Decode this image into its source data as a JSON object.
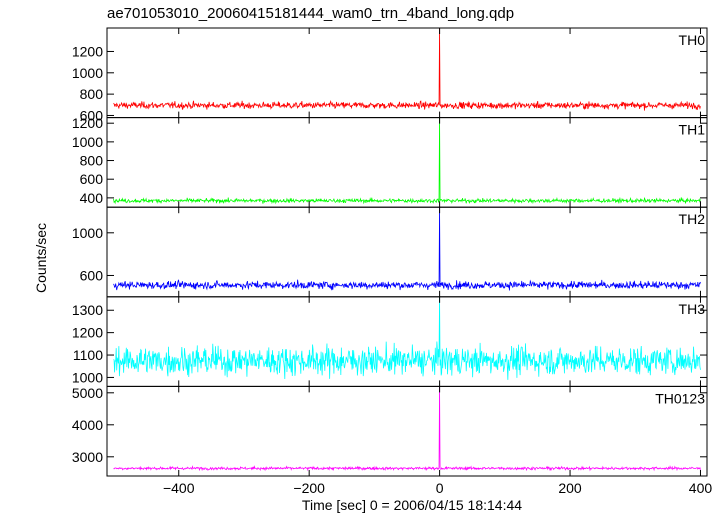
{
  "chart_data": {
    "type": "line",
    "title": "ae701053010_20060415181444_wam0_trn_4band_long.qdp",
    "xlabel": "Time [sec] 0 = 2006/04/15 18:14:44",
    "ylabel": "Counts/sec",
    "xlim": [
      -510,
      410
    ],
    "x_ticks": [
      -400,
      -200,
      0,
      200,
      400
    ],
    "x_tick_labels": [
      "−400",
      "−200",
      "0",
      "200",
      "400"
    ],
    "x_range_data": [
      -500,
      400
    ],
    "trigger_time": 0,
    "panels": [
      {
        "name": "TH0",
        "color": "#ff0000",
        "ylim": [
          580,
          1420
        ],
        "yticks": [
          600,
          800,
          1000,
          1200
        ],
        "baseline": 695,
        "noise": 22,
        "peak": 1420
      },
      {
        "name": "TH1",
        "color": "#00ff00",
        "ylim": [
          300,
          1260
        ],
        "yticks": [
          400,
          600,
          800,
          1000,
          1200
        ],
        "baseline": 370,
        "noise": 15,
        "peak": 1260
      },
      {
        "name": "TH2",
        "color": "#0000ff",
        "ylim": [
          400,
          1240
        ],
        "yticks": [
          600,
          1000
        ],
        "baseline": 510,
        "noise": 25,
        "peak": 1240
      },
      {
        "name": "TH3",
        "color": "#00ffff",
        "ylim": [
          960,
          1360
        ],
        "yticks": [
          1000,
          1100,
          1200,
          1300
        ],
        "baseline": 1075,
        "noise": 45,
        "peak": 1360
      },
      {
        "name": "TH0123",
        "color": "#ff00ff",
        "ylim": [
          2400,
          5200
        ],
        "yticks": [
          3000,
          4000,
          5000
        ],
        "baseline": 2640,
        "noise": 30,
        "peak": 5200
      }
    ]
  }
}
